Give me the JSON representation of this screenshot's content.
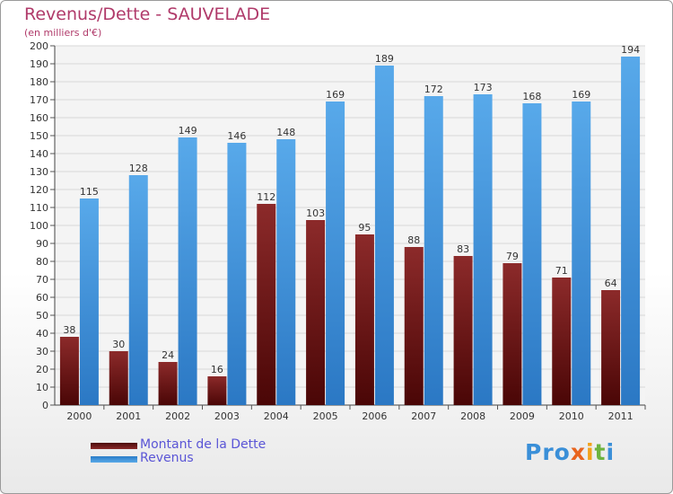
{
  "title": "Revenus/Dette - SAUVELADE",
  "subtitle": "(en milliers d'€)",
  "logo": {
    "p1": "Pro",
    "p2": "x",
    "p3": "i",
    "p4": "t",
    "p5": "i"
  },
  "legend": [
    {
      "label": "Montant de la Dette",
      "color": "#7a1c1c"
    },
    {
      "label": "Revenus",
      "color": "#3c8fd9"
    }
  ],
  "chart_data": {
    "type": "bar",
    "title": "Revenus/Dette - SAUVELADE",
    "subtitle": "(en milliers d'€)",
    "categories": [
      "2000",
      "2001",
      "2002",
      "2003",
      "2004",
      "2005",
      "2006",
      "2007",
      "2008",
      "2009",
      "2010",
      "2011"
    ],
    "series": [
      {
        "name": "Montant de la Dette",
        "color": "#7a1c1c",
        "values": [
          38,
          30,
          24,
          16,
          112,
          103,
          95,
          88,
          83,
          79,
          71,
          64
        ]
      },
      {
        "name": "Revenus",
        "color": "#3c8fd9",
        "values": [
          115,
          128,
          149,
          146,
          148,
          169,
          189,
          172,
          173,
          168,
          169,
          194
        ]
      }
    ],
    "ylim": [
      0,
      200
    ],
    "yticks": [
      0,
      10,
      20,
      30,
      40,
      50,
      60,
      70,
      80,
      90,
      100,
      110,
      120,
      130,
      140,
      150,
      160,
      170,
      180,
      190,
      200
    ],
    "grid": true,
    "legend_position": "bottom-left"
  }
}
